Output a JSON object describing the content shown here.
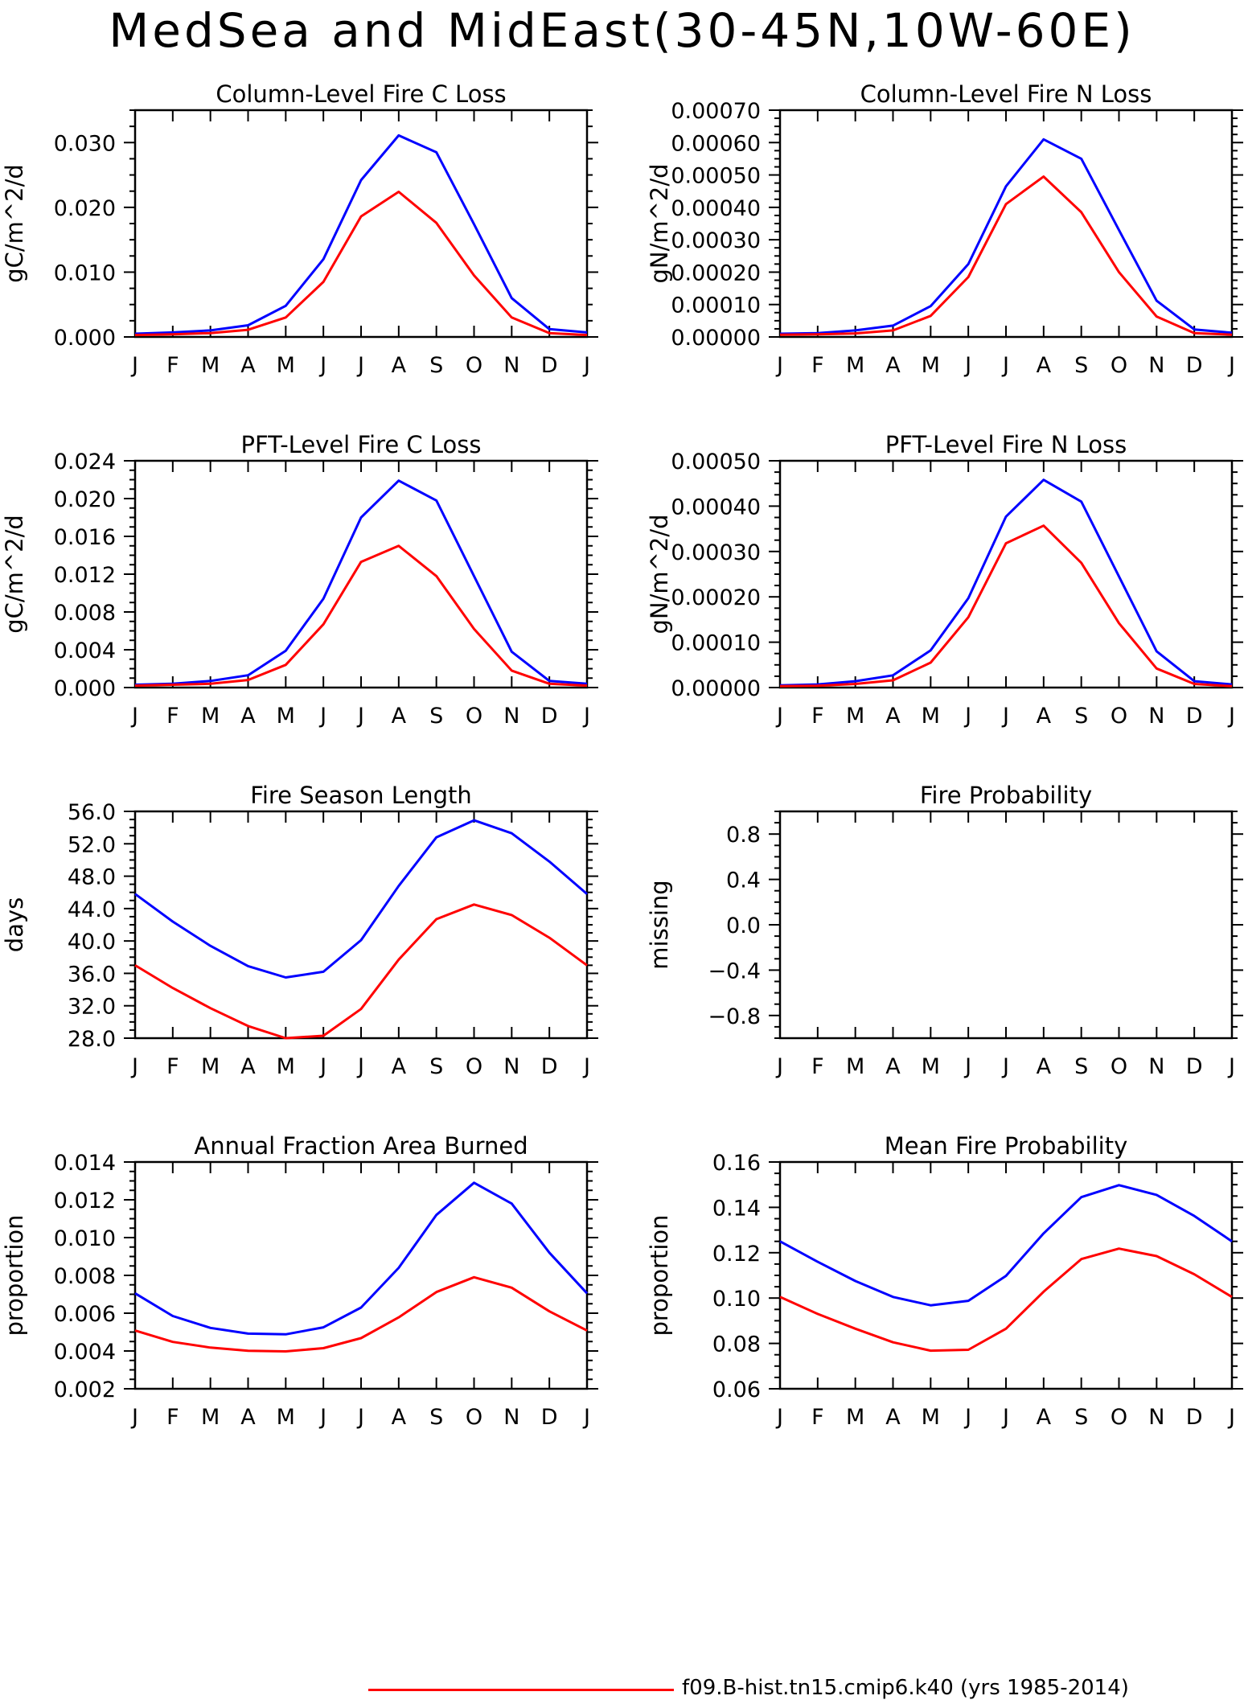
{
  "title": "MedSea and MidEast(30-45N,10W-60E)",
  "colors": {
    "series_red": "#ff0000",
    "series_blue": "#0000ff"
  },
  "legend": {
    "label": "f09.B-hist.tn15.cmip6.k40 (yrs 1985-2014)"
  },
  "chart_data": [
    {
      "type": "line",
      "title": "Column-Level Fire C Loss",
      "ylabel": "gC/m^2/d",
      "categories": [
        "J",
        "F",
        "M",
        "A",
        "M",
        "J",
        "J",
        "A",
        "S",
        "O",
        "N",
        "D",
        "J"
      ],
      "ylim": [
        0,
        0.035
      ],
      "yticks": [
        "0.000",
        "0.010",
        "0.020",
        "0.030"
      ],
      "series": [
        {
          "color": "#0000ff",
          "values": [
            0.0005,
            0.0007,
            0.001,
            0.0018,
            0.0048,
            0.012,
            0.0242,
            0.0311,
            0.0285,
            0.0174,
            0.006,
            0.0012,
            0.0007
          ]
        },
        {
          "color": "#ff0000",
          "values": [
            0.0003,
            0.0004,
            0.0006,
            0.0011,
            0.003,
            0.0085,
            0.0186,
            0.0224,
            0.0176,
            0.0095,
            0.003,
            0.0006,
            0.0003
          ]
        }
      ]
    },
    {
      "type": "line",
      "title": "Column-Level Fire N Loss",
      "ylabel": "gN/m^2/d",
      "categories": [
        "J",
        "F",
        "M",
        "A",
        "M",
        "J",
        "J",
        "A",
        "S",
        "O",
        "N",
        "D",
        "J"
      ],
      "ylim": [
        0,
        0.0007
      ],
      "yticks": [
        "0.00000",
        "0.00010",
        "0.00020",
        "0.00030",
        "0.00040",
        "0.00050",
        "0.00060",
        "0.00070"
      ],
      "series": [
        {
          "color": "#0000ff",
          "values": [
            1e-05,
            1.2e-05,
            2e-05,
            3.5e-05,
            9.5e-05,
            0.000225,
            0.000465,
            0.00061,
            0.00055,
            0.00033,
            0.000112,
            2.3e-05,
            1.3e-05
          ]
        },
        {
          "color": "#ff0000",
          "values": [
            7e-06,
            8e-06,
            1.1e-05,
            2e-05,
            6.5e-05,
            0.000185,
            0.00041,
            0.000495,
            0.000385,
            0.0002,
            6.3e-05,
            1.2e-05,
            7e-06
          ]
        }
      ]
    },
    {
      "type": "line",
      "title": "PFT-Level Fire C Loss",
      "ylabel": "gC/m^2/d",
      "categories": [
        "J",
        "F",
        "M",
        "A",
        "M",
        "J",
        "J",
        "A",
        "S",
        "O",
        "N",
        "D",
        "J"
      ],
      "ylim": [
        0,
        0.024
      ],
      "yticks": [
        "0.000",
        "0.004",
        "0.008",
        "0.012",
        "0.016",
        "0.020",
        "0.024"
      ],
      "series": [
        {
          "color": "#0000ff",
          "values": [
            0.0003,
            0.0004,
            0.0007,
            0.0013,
            0.0039,
            0.0094,
            0.018,
            0.0219,
            0.0198,
            0.0118,
            0.0038,
            0.0007,
            0.0004
          ]
        },
        {
          "color": "#ff0000",
          "values": [
            0.0002,
            0.0003,
            0.0004,
            0.0008,
            0.0024,
            0.0067,
            0.0133,
            0.015,
            0.0118,
            0.0062,
            0.0018,
            0.0004,
            0.0002
          ]
        }
      ]
    },
    {
      "type": "line",
      "title": "PFT-Level Fire N Loss",
      "ylabel": "gN/m^2/d",
      "categories": [
        "J",
        "F",
        "M",
        "A",
        "M",
        "J",
        "J",
        "A",
        "S",
        "O",
        "N",
        "D",
        "J"
      ],
      "ylim": [
        0,
        0.0005
      ],
      "yticks": [
        "0.00000",
        "0.00010",
        "0.00020",
        "0.00030",
        "0.00040",
        "0.00050"
      ],
      "series": [
        {
          "color": "#0000ff",
          "values": [
            5e-06,
            7e-06,
            1.4e-05,
            2.7e-05,
            8.2e-05,
            0.000197,
            0.000377,
            0.000458,
            0.00041,
            0.000245,
            8e-05,
            1.4e-05,
            7e-06
          ]
        },
        {
          "color": "#ff0000",
          "values": [
            3e-06,
            4e-06,
            8e-06,
            1.6e-05,
            5.5e-05,
            0.000155,
            0.000318,
            0.000357,
            0.000275,
            0.000142,
            4.2e-05,
            8e-06,
            3e-06
          ]
        }
      ]
    },
    {
      "type": "line",
      "title": "Fire Season Length",
      "ylabel": "days",
      "categories": [
        "J",
        "F",
        "M",
        "A",
        "M",
        "J",
        "J",
        "A",
        "S",
        "O",
        "N",
        "D",
        "J"
      ],
      "ylim": [
        28,
        56
      ],
      "yticks": [
        "28.0",
        "32.0",
        "36.0",
        "40.0",
        "44.0",
        "48.0",
        "52.0",
        "56.0"
      ],
      "series": [
        {
          "color": "#0000ff",
          "values": [
            45.8,
            42.4,
            39.4,
            36.9,
            35.5,
            36.2,
            40.1,
            46.8,
            52.8,
            54.9,
            53.3,
            49.8,
            45.8
          ]
        },
        {
          "color": "#ff0000",
          "values": [
            37.0,
            34.2,
            31.7,
            29.5,
            28.0,
            28.3,
            31.6,
            37.7,
            42.7,
            44.5,
            43.2,
            40.4,
            37.0
          ]
        }
      ]
    },
    {
      "type": "line",
      "title": "Fire Probability",
      "ylabel": "missing",
      "categories": [
        "J",
        "F",
        "M",
        "A",
        "M",
        "J",
        "J",
        "A",
        "S",
        "O",
        "N",
        "D",
        "J"
      ],
      "ylim": [
        -1,
        1
      ],
      "yticks": [
        "-0.8",
        "-0.4",
        "0.0",
        "0.4",
        "0.8"
      ],
      "series": []
    },
    {
      "type": "line",
      "title": "Annual Fraction Area Burned",
      "ylabel": "proportion",
      "categories": [
        "J",
        "F",
        "M",
        "A",
        "M",
        "J",
        "J",
        "A",
        "S",
        "O",
        "N",
        "D",
        "J"
      ],
      "ylim": [
        0.002,
        0.014
      ],
      "yticks": [
        "0.002",
        "0.004",
        "0.006",
        "0.008",
        "0.010",
        "0.012",
        "0.014"
      ],
      "series": [
        {
          "color": "#0000ff",
          "values": [
            0.00705,
            0.00585,
            0.00522,
            0.00492,
            0.00488,
            0.00525,
            0.0063,
            0.0084,
            0.0112,
            0.0129,
            0.0118,
            0.0092,
            0.00705
          ]
        },
        {
          "color": "#ff0000",
          "values": [
            0.00508,
            0.00448,
            0.00418,
            0.00401,
            0.00398,
            0.00415,
            0.00468,
            0.00578,
            0.00712,
            0.0079,
            0.00735,
            0.0061,
            0.00508
          ]
        }
      ]
    },
    {
      "type": "line",
      "title": "Mean Fire Probability",
      "ylabel": "proportion",
      "categories": [
        "J",
        "F",
        "M",
        "A",
        "M",
        "J",
        "J",
        "A",
        "S",
        "O",
        "N",
        "D",
        "J"
      ],
      "ylim": [
        0.06,
        0.16
      ],
      "yticks": [
        "0.06",
        "0.08",
        "0.10",
        "0.12",
        "0.14",
        "0.16"
      ],
      "series": [
        {
          "color": "#0000ff",
          "values": [
            0.125,
            0.116,
            0.1075,
            0.1005,
            0.0968,
            0.0988,
            0.1098,
            0.1285,
            0.1445,
            0.1498,
            0.1455,
            0.1362,
            0.125
          ]
        },
        {
          "color": "#ff0000",
          "values": [
            0.1005,
            0.093,
            0.0865,
            0.0805,
            0.0768,
            0.0772,
            0.0865,
            0.1028,
            0.1172,
            0.1218,
            0.1185,
            0.1105,
            0.1005
          ]
        }
      ]
    }
  ]
}
